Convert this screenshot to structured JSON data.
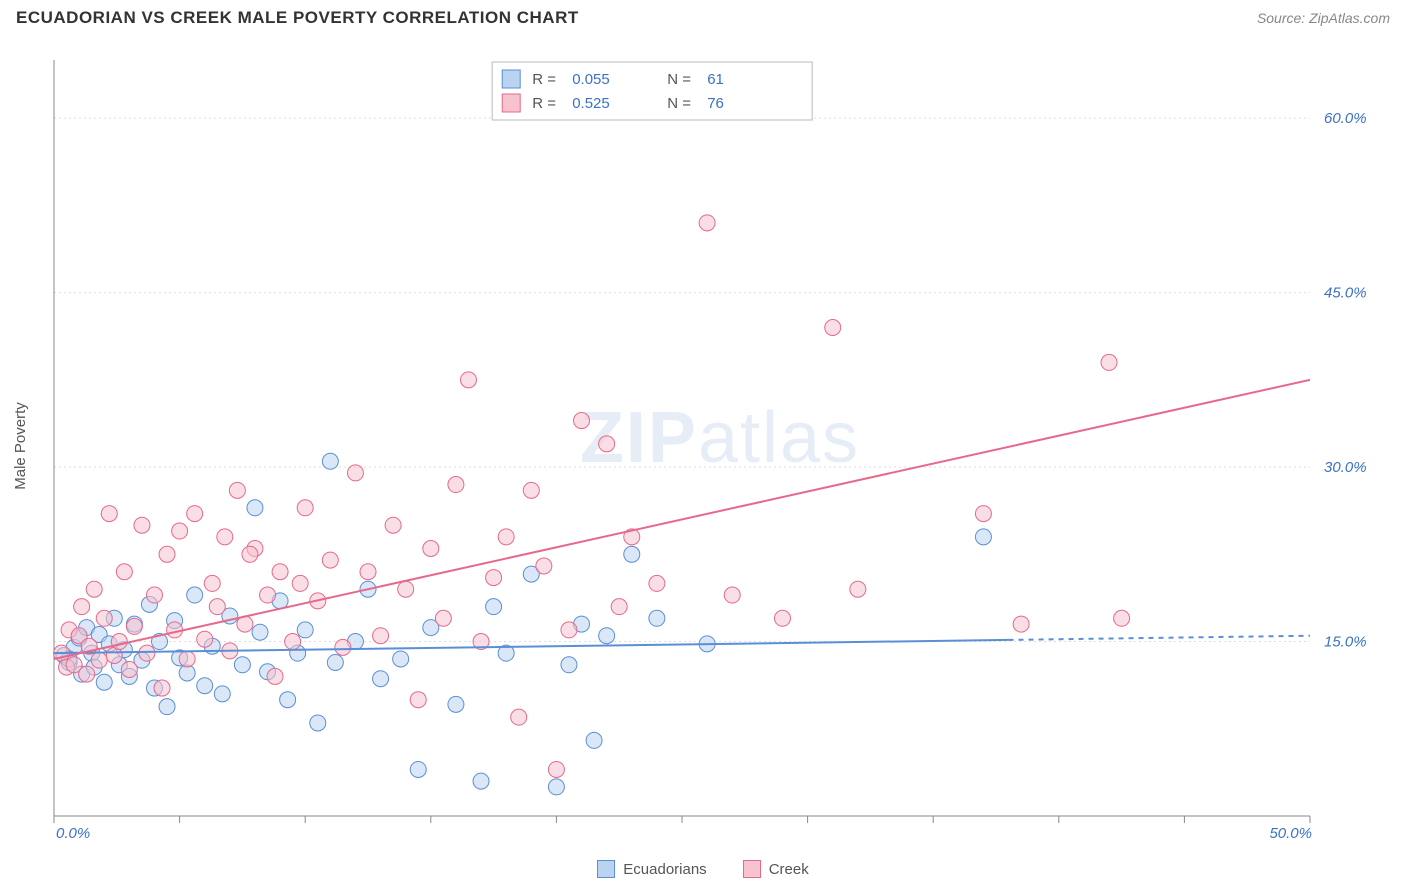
{
  "title": "ECUADORIAN VS CREEK MALE POVERTY CORRELATION CHART",
  "source": "Source: ZipAtlas.com",
  "ylabel": "Male Poverty",
  "watermark": {
    "part1": "ZIP",
    "part2": "atlas"
  },
  "chart": {
    "type": "scatter",
    "background_color": "#ffffff",
    "grid_color": "#dddddd",
    "axis_color": "#888888",
    "label_color": "#3b72c4",
    "text_color": "#555555",
    "xlim": [
      0,
      50
    ],
    "ylim": [
      0,
      65
    ],
    "x_ticks": [
      0,
      5,
      10,
      15,
      20,
      25,
      30,
      35,
      40,
      45,
      50
    ],
    "x_tick_labels": {
      "0": "0.0%",
      "50": "50.0%"
    },
    "y_ticks": [
      15,
      30,
      45,
      60
    ],
    "y_tick_labels": {
      "15": "15.0%",
      "30": "30.0%",
      "45": "45.0%",
      "60": "60.0%"
    },
    "marker_radius": 8,
    "marker_opacity": 0.55,
    "line_width": 2,
    "legend_top": {
      "r_label": "R =",
      "n_label": "N =",
      "rows": [
        {
          "swatch_fill": "#b9d3f0",
          "swatch_stroke": "#5a8fd6",
          "r": "0.055",
          "n": "61"
        },
        {
          "swatch_fill": "#f6c3cf",
          "swatch_stroke": "#e6698b",
          "r": "0.525",
          "n": "76"
        }
      ]
    },
    "legend_bottom": [
      {
        "label": "Ecuadorians",
        "fill": "#b9d3f0",
        "stroke": "#5a8fd6"
      },
      {
        "label": "Creek",
        "fill": "#f6c3cf",
        "stroke": "#e6698b"
      }
    ],
    "series": [
      {
        "name": "Ecuadorians",
        "color_fill": "#b9d3f0",
        "color_stroke": "#5a8fd6",
        "trend": {
          "slope": 0.03,
          "intercept": 14.0,
          "x0": 0,
          "x1": 38,
          "dash_x1": 50
        },
        "points": [
          [
            0.4,
            13.8
          ],
          [
            0.6,
            13.2
          ],
          [
            0.8,
            14.5
          ],
          [
            1.0,
            15.3
          ],
          [
            1.1,
            12.2
          ],
          [
            1.3,
            16.2
          ],
          [
            1.5,
            14.0
          ],
          [
            1.6,
            12.8
          ],
          [
            1.8,
            15.6
          ],
          [
            2.0,
            11.5
          ],
          [
            2.2,
            14.8
          ],
          [
            2.4,
            17.0
          ],
          [
            2.6,
            13.0
          ],
          [
            2.8,
            14.3
          ],
          [
            3.0,
            12.0
          ],
          [
            3.2,
            16.5
          ],
          [
            3.5,
            13.4
          ],
          [
            3.8,
            18.2
          ],
          [
            4.0,
            11.0
          ],
          [
            4.2,
            15.0
          ],
          [
            4.5,
            9.4
          ],
          [
            4.8,
            16.8
          ],
          [
            5.0,
            13.6
          ],
          [
            5.3,
            12.3
          ],
          [
            5.6,
            19.0
          ],
          [
            6.0,
            11.2
          ],
          [
            6.3,
            14.6
          ],
          [
            6.7,
            10.5
          ],
          [
            7.0,
            17.2
          ],
          [
            7.5,
            13.0
          ],
          [
            8.0,
            26.5
          ],
          [
            8.2,
            15.8
          ],
          [
            8.5,
            12.4
          ],
          [
            9.0,
            18.5
          ],
          [
            9.3,
            10.0
          ],
          [
            9.7,
            14.0
          ],
          [
            10.0,
            16.0
          ],
          [
            10.5,
            8.0
          ],
          [
            11.0,
            30.5
          ],
          [
            11.2,
            13.2
          ],
          [
            12.0,
            15.0
          ],
          [
            12.5,
            19.5
          ],
          [
            13.0,
            11.8
          ],
          [
            13.8,
            13.5
          ],
          [
            14.5,
            4.0
          ],
          [
            15.0,
            16.2
          ],
          [
            16.0,
            9.6
          ],
          [
            17.0,
            3.0
          ],
          [
            17.5,
            18.0
          ],
          [
            18.0,
            14.0
          ],
          [
            19.0,
            20.8
          ],
          [
            20.0,
            2.5
          ],
          [
            20.5,
            13.0
          ],
          [
            21.0,
            16.5
          ],
          [
            21.5,
            6.5
          ],
          [
            22.0,
            15.5
          ],
          [
            23.0,
            22.5
          ],
          [
            24.0,
            17.0
          ],
          [
            26.0,
            14.8
          ],
          [
            37.0,
            24.0
          ],
          [
            0.6,
            13.5
          ]
        ]
      },
      {
        "name": "Creek",
        "color_fill": "#f6c3cf",
        "color_stroke": "#e6698b",
        "trend": {
          "slope": 0.48,
          "intercept": 13.5,
          "x0": 0,
          "x1": 50
        },
        "points": [
          [
            0.3,
            14.0
          ],
          [
            0.5,
            12.8
          ],
          [
            0.6,
            16.0
          ],
          [
            0.8,
            13.0
          ],
          [
            1.0,
            15.5
          ],
          [
            1.1,
            18.0
          ],
          [
            1.3,
            12.2
          ],
          [
            1.4,
            14.6
          ],
          [
            1.6,
            19.5
          ],
          [
            1.8,
            13.4
          ],
          [
            2.0,
            17.0
          ],
          [
            2.2,
            26.0
          ],
          [
            2.4,
            13.8
          ],
          [
            2.6,
            15.0
          ],
          [
            2.8,
            21.0
          ],
          [
            3.0,
            12.6
          ],
          [
            3.2,
            16.3
          ],
          [
            3.5,
            25.0
          ],
          [
            3.7,
            14.0
          ],
          [
            4.0,
            19.0
          ],
          [
            4.3,
            11.0
          ],
          [
            4.5,
            22.5
          ],
          [
            4.8,
            16.0
          ],
          [
            5.0,
            24.5
          ],
          [
            5.3,
            13.5
          ],
          [
            5.6,
            26.0
          ],
          [
            6.0,
            15.2
          ],
          [
            6.3,
            20.0
          ],
          [
            6.5,
            18.0
          ],
          [
            6.8,
            24.0
          ],
          [
            7.0,
            14.2
          ],
          [
            7.3,
            28.0
          ],
          [
            7.6,
            16.5
          ],
          [
            8.0,
            23.0
          ],
          [
            8.5,
            19.0
          ],
          [
            8.8,
            12.0
          ],
          [
            9.0,
            21.0
          ],
          [
            9.5,
            15.0
          ],
          [
            10.0,
            26.5
          ],
          [
            10.5,
            18.5
          ],
          [
            11.0,
            22.0
          ],
          [
            11.5,
            14.5
          ],
          [
            12.0,
            29.5
          ],
          [
            12.5,
            21.0
          ],
          [
            13.0,
            15.5
          ],
          [
            13.5,
            25.0
          ],
          [
            14.0,
            19.5
          ],
          [
            14.5,
            10.0
          ],
          [
            15.0,
            23.0
          ],
          [
            15.5,
            17.0
          ],
          [
            16.0,
            28.5
          ],
          [
            16.5,
            37.5
          ],
          [
            17.0,
            15.0
          ],
          [
            17.5,
            20.5
          ],
          [
            18.0,
            24.0
          ],
          [
            18.5,
            8.5
          ],
          [
            19.0,
            28.0
          ],
          [
            19.5,
            21.5
          ],
          [
            20.0,
            4.0
          ],
          [
            20.5,
            16.0
          ],
          [
            21.0,
            34.0
          ],
          [
            22.0,
            32.0
          ],
          [
            22.5,
            18.0
          ],
          [
            23.0,
            24.0
          ],
          [
            24.0,
            20.0
          ],
          [
            26.0,
            51.0
          ],
          [
            27.0,
            19.0
          ],
          [
            29.0,
            17.0
          ],
          [
            31.0,
            42.0
          ],
          [
            32.0,
            19.5
          ],
          [
            37.0,
            26.0
          ],
          [
            38.5,
            16.5
          ],
          [
            42.0,
            39.0
          ],
          [
            42.5,
            17.0
          ],
          [
            7.8,
            22.5
          ],
          [
            9.8,
            20.0
          ]
        ]
      }
    ]
  }
}
